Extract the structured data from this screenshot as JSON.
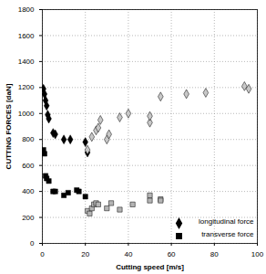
{
  "chart_data": {
    "type": "scatter",
    "x_label": "Cutting speed [m/s]",
    "y_label": "CUTTING FORCES [daN]",
    "xlim": [
      0,
      100
    ],
    "xticks": [
      0,
      20,
      40,
      60,
      80,
      100
    ],
    "ylim": [
      0,
      1800
    ],
    "yticks": [
      0,
      200,
      400,
      600,
      800,
      1000,
      1200,
      1400,
      1600,
      1800
    ],
    "grid": true,
    "legend": "bottom-right",
    "series": [
      {
        "name": "longitudinal force",
        "marker": "diamond",
        "color": "#000000",
        "x": [
          0.5,
          1,
          1.5,
          2,
          2.5,
          3,
          5,
          6,
          10,
          13,
          20,
          21,
          21,
          23,
          25,
          26,
          27,
          30,
          31,
          36,
          40,
          50,
          50,
          55,
          67,
          76,
          94,
          96
        ],
        "values": [
          1190,
          1150,
          1100,
          1060,
          990,
          960,
          850,
          840,
          800,
          800,
          780,
          700,
          720,
          820,
          870,
          890,
          950,
          800,
          840,
          970,
          1000,
          930,
          980,
          1130,
          1150,
          1160,
          1210,
          1190
        ],
        "colors": [
          "#000000",
          "#000000",
          "#000000",
          "#000000",
          "#000000",
          "#000000",
          "#000000",
          "#000000",
          "#000000",
          "#000000",
          "#000000",
          "#000000",
          "#c8c8c8",
          "#c8c8c8",
          "#c8c8c8",
          "#c8c8c8",
          "#c8c8c8",
          "#c8c8c8",
          "#c8c8c8",
          "#c8c8c8",
          "#c8c8c8",
          "#c8c8c8",
          "#c8c8c8",
          "#c8c8c8",
          "#c8c8c8",
          "#c8c8c8",
          "#c8c8c8",
          "#c8c8c8"
        ]
      },
      {
        "name": "transverse force",
        "marker": "square",
        "color": "#000000",
        "x": [
          0.5,
          1,
          1.5,
          2,
          3,
          5,
          6,
          10,
          12,
          16,
          17,
          20,
          21,
          22,
          23,
          24,
          25,
          26,
          30,
          32,
          36,
          42,
          50,
          50,
          55,
          55
        ],
        "values": [
          720,
          690,
          520,
          500,
          480,
          400,
          400,
          370,
          390,
          410,
          400,
          360,
          250,
          230,
          270,
          300,
          310,
          300,
          270,
          310,
          260,
          300,
          330,
          370,
          340,
          330
        ],
        "colors": [
          "#000000",
          "#000000",
          "#000000",
          "#000000",
          "#000000",
          "#000000",
          "#000000",
          "#000000",
          "#000000",
          "#000000",
          "#000000",
          "#000000",
          "#b4b4b4",
          "#b4b4b4",
          "#b4b4b4",
          "#b4b4b4",
          "#b4b4b4",
          "#b4b4b4",
          "#b4b4b4",
          "#b4b4b4",
          "#b4b4b4",
          "#b4b4b4",
          "#b4b4b4",
          "#b4b4b4",
          "#b4b4b4",
          "#b4b4b4"
        ]
      }
    ]
  }
}
